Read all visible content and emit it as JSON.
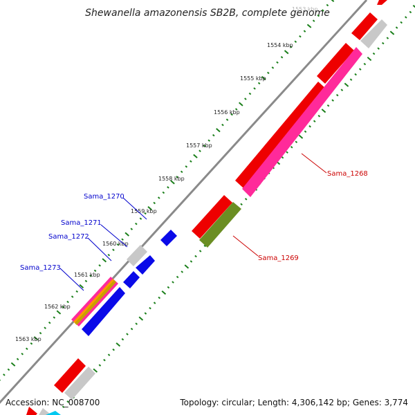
{
  "title": "Shewanella amazonensis SB2B, complete genome",
  "footer": {
    "accession": "Accession: NC_008700",
    "stats": "Topology: circular; Length: 4,306,142 bp; Genes: 3,774"
  },
  "ruler": {
    "labels": [
      "1553 kbp",
      "1554 kbp",
      "1555 kbp",
      "1556 kbp",
      "1557 kbp",
      "1558 kbp",
      "1559 kbp",
      "1560 kbp",
      "1561 kbp",
      "1562 kbp",
      "1563 kbp"
    ],
    "tick_color": "#1a7f1a"
  },
  "genes": [
    {
      "name": "Sama_1268",
      "color": "#cc0000"
    },
    {
      "name": "Sama_1269",
      "color": "#cc0000"
    },
    {
      "name": "Sama_1270",
      "color": "#0000cc"
    },
    {
      "name": "Sama_1271",
      "color": "#0000cc"
    },
    {
      "name": "Sama_1272",
      "color": "#0000cc"
    },
    {
      "name": "Sama_1273",
      "color": "#0000cc"
    }
  ],
  "colors": {
    "backbone": "#8a8a8a",
    "red": "#ee0000",
    "magenta": "#ff2a9a",
    "olive": "#6b8e23",
    "gray": "#c8c8c8",
    "blue": "#0a0ae8",
    "orange": "#ff9900",
    "cyan": "#00c8f0"
  }
}
